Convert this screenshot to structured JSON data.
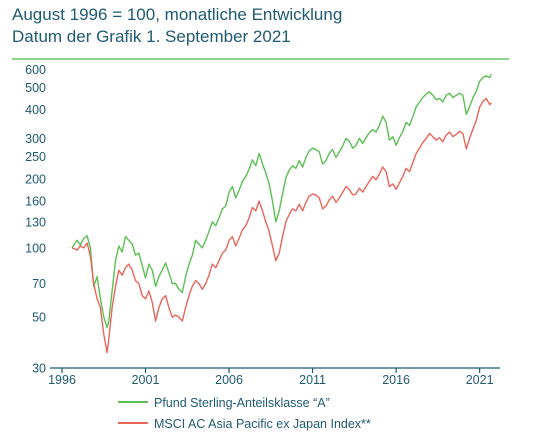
{
  "header": {
    "title_line1": "August 1996 = 100, monatliche Entwicklung",
    "title_line2": "Datum der Grafik 1. September 2021"
  },
  "colors": {
    "title": "#1f5a73",
    "rule": "#8fd58a",
    "fund": "#5cbf55",
    "index": "#e8655a",
    "axis": "#1f5a73"
  },
  "chart_data": {
    "type": "line",
    "title": "August 1996 = 100, monatliche Entwicklung",
    "subtitle": "Datum der Grafik 1. September 2021",
    "xlabel": "",
    "ylabel": "",
    "y_scale": "log",
    "xlim": [
      1996.0,
      2021.8
    ],
    "ylim": [
      30,
      620
    ],
    "grid": false,
    "legend_position": "bottom",
    "x_ticks": [
      1996,
      2001,
      2006,
      2011,
      2016,
      2021
    ],
    "y_ticks": [
      30,
      50,
      70,
      100,
      130,
      160,
      200,
      250,
      300,
      400,
      500,
      600
    ],
    "series": [
      {
        "name": "Pfund Sterling-Anteilsklasse “A”",
        "color": "#5cbf55",
        "points": [
          [
            1996.6,
            100
          ],
          [
            1996.9,
            108
          ],
          [
            1997.1,
            103
          ],
          [
            1997.3,
            110
          ],
          [
            1997.5,
            113
          ],
          [
            1997.7,
            100
          ],
          [
            1997.9,
            68
          ],
          [
            1998.1,
            75
          ],
          [
            1998.3,
            60
          ],
          [
            1998.5,
            50
          ],
          [
            1998.7,
            45
          ],
          [
            1998.8,
            48
          ],
          [
            1999.0,
            65
          ],
          [
            1999.2,
            88
          ],
          [
            1999.4,
            102
          ],
          [
            1999.6,
            96
          ],
          [
            1999.8,
            112
          ],
          [
            2000.0,
            108
          ],
          [
            2000.2,
            104
          ],
          [
            2000.4,
            93
          ],
          [
            2000.6,
            95
          ],
          [
            2000.8,
            84
          ],
          [
            2001.0,
            74
          ],
          [
            2001.2,
            85
          ],
          [
            2001.4,
            80
          ],
          [
            2001.6,
            68
          ],
          [
            2001.8,
            75
          ],
          [
            2002.0,
            80
          ],
          [
            2002.2,
            86
          ],
          [
            2002.4,
            78
          ],
          [
            2002.6,
            70
          ],
          [
            2002.8,
            70
          ],
          [
            2003.0,
            66
          ],
          [
            2003.2,
            64
          ],
          [
            2003.4,
            75
          ],
          [
            2003.6,
            85
          ],
          [
            2003.8,
            93
          ],
          [
            2004.0,
            108
          ],
          [
            2004.2,
            104
          ],
          [
            2004.4,
            100
          ],
          [
            2004.6,
            108
          ],
          [
            2004.8,
            118
          ],
          [
            2005.0,
            130
          ],
          [
            2005.2,
            125
          ],
          [
            2005.4,
            135
          ],
          [
            2005.6,
            148
          ],
          [
            2005.8,
            152
          ],
          [
            2006.0,
            175
          ],
          [
            2006.2,
            185
          ],
          [
            2006.4,
            165
          ],
          [
            2006.6,
            178
          ],
          [
            2006.8,
            195
          ],
          [
            2007.0,
            205
          ],
          [
            2007.2,
            220
          ],
          [
            2007.4,
            242
          ],
          [
            2007.6,
            228
          ],
          [
            2007.8,
            258
          ],
          [
            2008.0,
            232
          ],
          [
            2008.2,
            212
          ],
          [
            2008.4,
            190
          ],
          [
            2008.6,
            160
          ],
          [
            2008.8,
            130
          ],
          [
            2009.0,
            145
          ],
          [
            2009.2,
            172
          ],
          [
            2009.4,
            202
          ],
          [
            2009.6,
            218
          ],
          [
            2009.8,
            228
          ],
          [
            2010.0,
            222
          ],
          [
            2010.2,
            240
          ],
          [
            2010.4,
            225
          ],
          [
            2010.6,
            248
          ],
          [
            2010.8,
            265
          ],
          [
            2011.0,
            272
          ],
          [
            2011.2,
            268
          ],
          [
            2011.4,
            262
          ],
          [
            2011.6,
            232
          ],
          [
            2011.8,
            240
          ],
          [
            2012.0,
            258
          ],
          [
            2012.2,
            268
          ],
          [
            2012.4,
            248
          ],
          [
            2012.6,
            262
          ],
          [
            2012.8,
            278
          ],
          [
            2013.0,
            300
          ],
          [
            2013.2,
            292
          ],
          [
            2013.4,
            272
          ],
          [
            2013.6,
            280
          ],
          [
            2013.8,
            300
          ],
          [
            2014.0,
            285
          ],
          [
            2014.2,
            302
          ],
          [
            2014.4,
            318
          ],
          [
            2014.6,
            328
          ],
          [
            2014.8,
            320
          ],
          [
            2015.0,
            342
          ],
          [
            2015.2,
            375
          ],
          [
            2015.4,
            352
          ],
          [
            2015.6,
            295
          ],
          [
            2015.8,
            305
          ],
          [
            2016.0,
            280
          ],
          [
            2016.2,
            302
          ],
          [
            2016.4,
            322
          ],
          [
            2016.6,
            352
          ],
          [
            2016.8,
            342
          ],
          [
            2017.0,
            372
          ],
          [
            2017.2,
            412
          ],
          [
            2017.4,
            432
          ],
          [
            2017.6,
            452
          ],
          [
            2017.8,
            468
          ],
          [
            2018.0,
            478
          ],
          [
            2018.2,
            462
          ],
          [
            2018.4,
            442
          ],
          [
            2018.6,
            448
          ],
          [
            2018.8,
            432
          ],
          [
            2019.0,
            462
          ],
          [
            2019.2,
            472
          ],
          [
            2019.4,
            452
          ],
          [
            2019.6,
            462
          ],
          [
            2019.8,
            472
          ],
          [
            2020.0,
            462
          ],
          [
            2020.2,
            382
          ],
          [
            2020.4,
            412
          ],
          [
            2020.6,
            452
          ],
          [
            2020.8,
            482
          ],
          [
            2021.0,
            532
          ],
          [
            2021.2,
            552
          ],
          [
            2021.4,
            562
          ],
          [
            2021.6,
            552
          ],
          [
            2021.7,
            572
          ]
        ]
      },
      {
        "name": "MSCI AC Asia Pacific ex Japan Index**",
        "color": "#e8655a",
        "points": [
          [
            1996.6,
            100
          ],
          [
            1996.9,
            98
          ],
          [
            1997.1,
            102
          ],
          [
            1997.3,
            100
          ],
          [
            1997.5,
            105
          ],
          [
            1997.7,
            92
          ],
          [
            1997.9,
            70
          ],
          [
            1998.1,
            60
          ],
          [
            1998.3,
            55
          ],
          [
            1998.5,
            42
          ],
          [
            1998.7,
            35
          ],
          [
            1998.8,
            40
          ],
          [
            1999.0,
            55
          ],
          [
            1999.2,
            68
          ],
          [
            1999.4,
            80
          ],
          [
            1999.6,
            76
          ],
          [
            1999.8,
            82
          ],
          [
            2000.0,
            85
          ],
          [
            2000.2,
            80
          ],
          [
            2000.4,
            72
          ],
          [
            2000.6,
            70
          ],
          [
            2000.8,
            62
          ],
          [
            2001.0,
            60
          ],
          [
            2001.2,
            65
          ],
          [
            2001.4,
            58
          ],
          [
            2001.6,
            48
          ],
          [
            2001.8,
            55
          ],
          [
            2002.0,
            60
          ],
          [
            2002.2,
            62
          ],
          [
            2002.4,
            55
          ],
          [
            2002.6,
            50
          ],
          [
            2002.8,
            51
          ],
          [
            2003.0,
            50
          ],
          [
            2003.2,
            48
          ],
          [
            2003.4,
            55
          ],
          [
            2003.6,
            62
          ],
          [
            2003.8,
            68
          ],
          [
            2004.0,
            72
          ],
          [
            2004.2,
            70
          ],
          [
            2004.4,
            66
          ],
          [
            2004.6,
            70
          ],
          [
            2004.8,
            76
          ],
          [
            2005.0,
            85
          ],
          [
            2005.2,
            82
          ],
          [
            2005.4,
            88
          ],
          [
            2005.6,
            95
          ],
          [
            2005.8,
            98
          ],
          [
            2006.0,
            108
          ],
          [
            2006.2,
            112
          ],
          [
            2006.4,
            102
          ],
          [
            2006.6,
            110
          ],
          [
            2006.8,
            120
          ],
          [
            2007.0,
            125
          ],
          [
            2007.2,
            135
          ],
          [
            2007.4,
            150
          ],
          [
            2007.6,
            145
          ],
          [
            2007.8,
            160
          ],
          [
            2008.0,
            145
          ],
          [
            2008.2,
            130
          ],
          [
            2008.4,
            118
          ],
          [
            2008.6,
            102
          ],
          [
            2008.8,
            88
          ],
          [
            2009.0,
            95
          ],
          [
            2009.2,
            112
          ],
          [
            2009.4,
            130
          ],
          [
            2009.6,
            140
          ],
          [
            2009.8,
            148
          ],
          [
            2010.0,
            145
          ],
          [
            2010.2,
            155
          ],
          [
            2010.4,
            145
          ],
          [
            2010.6,
            158
          ],
          [
            2010.8,
            168
          ],
          [
            2011.0,
            172
          ],
          [
            2011.2,
            170
          ],
          [
            2011.4,
            165
          ],
          [
            2011.6,
            148
          ],
          [
            2011.8,
            152
          ],
          [
            2012.0,
            162
          ],
          [
            2012.2,
            168
          ],
          [
            2012.4,
            158
          ],
          [
            2012.6,
            165
          ],
          [
            2012.8,
            175
          ],
          [
            2013.0,
            185
          ],
          [
            2013.2,
            180
          ],
          [
            2013.4,
            170
          ],
          [
            2013.6,
            172
          ],
          [
            2013.8,
            182
          ],
          [
            2014.0,
            175
          ],
          [
            2014.2,
            185
          ],
          [
            2014.4,
            195
          ],
          [
            2014.6,
            205
          ],
          [
            2014.8,
            198
          ],
          [
            2015.0,
            210
          ],
          [
            2015.2,
            225
          ],
          [
            2015.4,
            215
          ],
          [
            2015.6,
            185
          ],
          [
            2015.8,
            190
          ],
          [
            2016.0,
            180
          ],
          [
            2016.2,
            192
          ],
          [
            2016.4,
            205
          ],
          [
            2016.6,
            222
          ],
          [
            2016.8,
            215
          ],
          [
            2017.0,
            235
          ],
          [
            2017.2,
            258
          ],
          [
            2017.4,
            272
          ],
          [
            2017.6,
            288
          ],
          [
            2017.8,
            300
          ],
          [
            2018.0,
            315
          ],
          [
            2018.2,
            305
          ],
          [
            2018.4,
            295
          ],
          [
            2018.6,
            302
          ],
          [
            2018.8,
            290
          ],
          [
            2019.0,
            310
          ],
          [
            2019.2,
            320
          ],
          [
            2019.4,
            305
          ],
          [
            2019.6,
            312
          ],
          [
            2019.8,
            322
          ],
          [
            2020.0,
            315
          ],
          [
            2020.2,
            270
          ],
          [
            2020.4,
            300
          ],
          [
            2020.6,
            330
          ],
          [
            2020.8,
            360
          ],
          [
            2021.0,
            410
          ],
          [
            2021.2,
            435
          ],
          [
            2021.4,
            448
          ],
          [
            2021.6,
            420
          ],
          [
            2021.7,
            430
          ]
        ]
      }
    ]
  }
}
